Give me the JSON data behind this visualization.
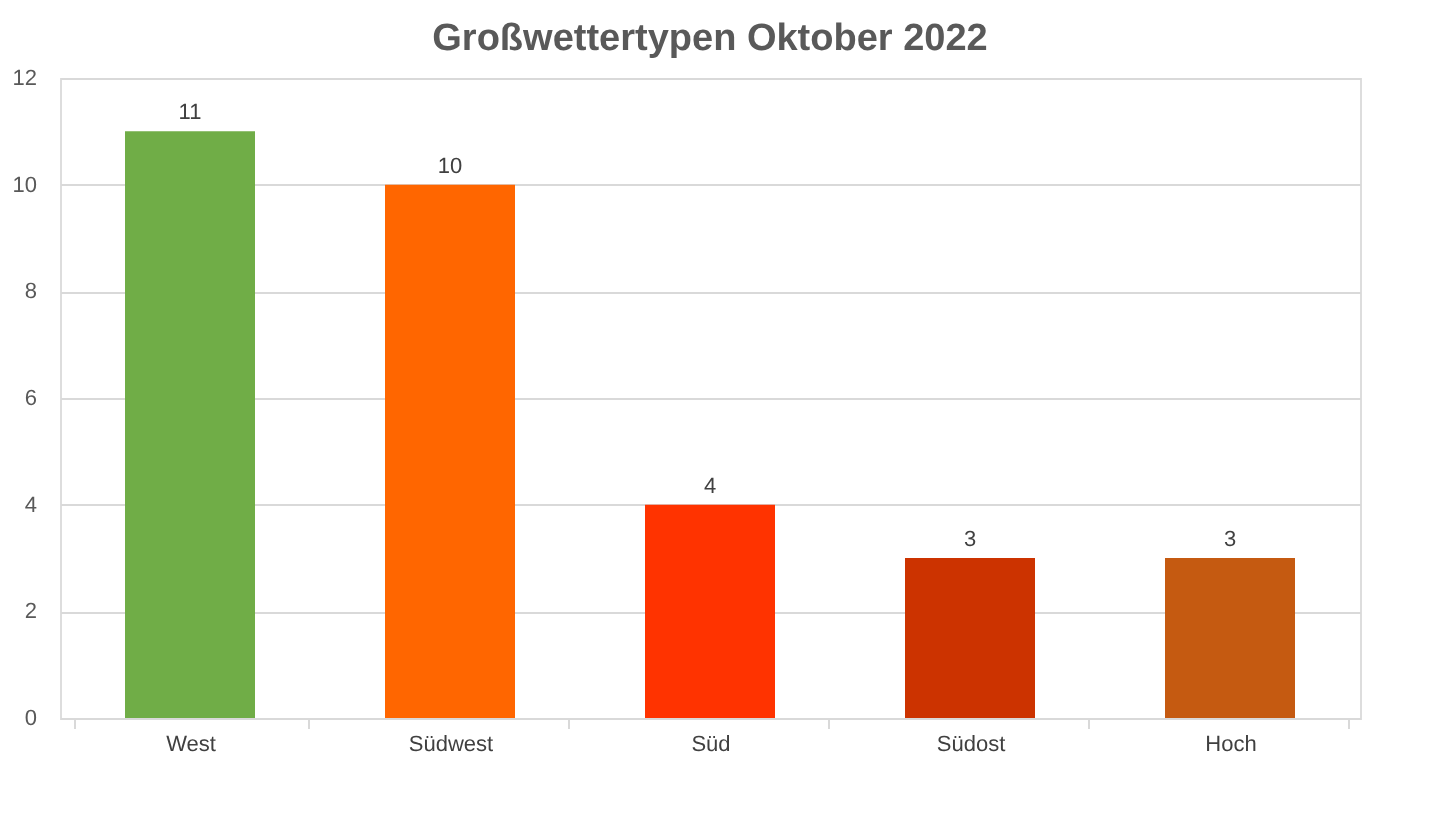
{
  "chart_data": {
    "type": "bar",
    "title": "Großwettertypen Oktober 2022",
    "categories": [
      "West",
      "Südwest",
      "Süd",
      "Südost",
      "Hoch"
    ],
    "values": [
      11,
      10,
      4,
      3,
      3
    ],
    "colors": [
      "#70ad47",
      "#ff6600",
      "#ff3300",
      "#cc3300",
      "#c55a11"
    ],
    "ylim": [
      0,
      12
    ],
    "yticks": [
      0,
      2,
      4,
      6,
      8,
      10,
      12
    ],
    "grid": "y",
    "data_labels": true
  }
}
